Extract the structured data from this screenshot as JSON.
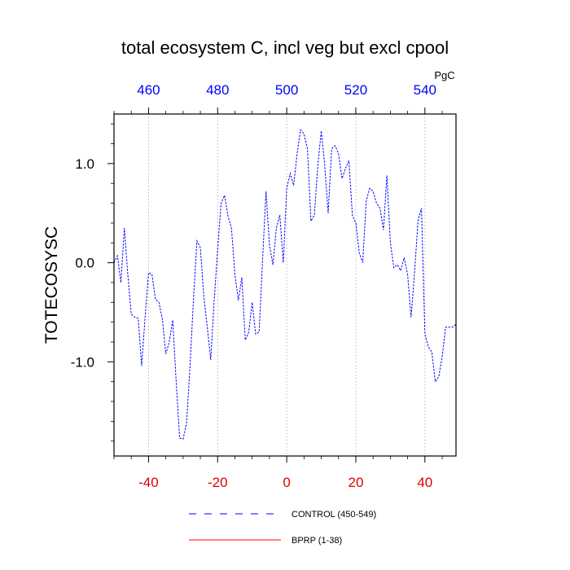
{
  "chart_data": {
    "type": "line",
    "title": "total ecosystem C, incl veg but excl cpool",
    "ylabel": "TOTECOSYSC",
    "xlabel": "",
    "units_label": "PgC",
    "xlim": [
      -50,
      49
    ],
    "ylim": [
      -1.95,
      1.5
    ],
    "bottom_axis": {
      "ticks": [
        -40,
        -20,
        0,
        20,
        40
      ],
      "labels": [
        "-40",
        "-20",
        "0",
        "20",
        "40"
      ],
      "color": "#e00000"
    },
    "top_axis": {
      "ticks": [
        -40,
        -20,
        0,
        20,
        40
      ],
      "labels": [
        "460",
        "480",
        "500",
        "520",
        "540"
      ],
      "color": "#0000ff"
    },
    "left_axis": {
      "ticks": [
        1.0,
        0.0,
        -1.0
      ],
      "labels": [
        "1.0",
        "0.0",
        "-1.0"
      ]
    },
    "grid": "vertical dotted at major x ticks",
    "series": [
      {
        "name": "CONTROL (450-549)",
        "color": "#0000ff",
        "style": "dashed",
        "x": [
          -50,
          -49,
          -48,
          -47,
          -46,
          -45,
          -44,
          -43,
          -42,
          -41,
          -40,
          -39,
          -38,
          -37,
          -36,
          -35,
          -34,
          -33,
          -32,
          -31,
          -30,
          -29,
          -28,
          -27,
          -26,
          -25,
          -24,
          -23,
          -22,
          -21,
          -20,
          -19,
          -18,
          -17,
          -16,
          -15,
          -14,
          -13,
          -12,
          -11,
          -10,
          -9,
          -8,
          -7,
          -6,
          -5,
          -4,
          -3,
          -2,
          -1,
          0,
          1,
          2,
          3,
          4,
          5,
          6,
          7,
          8,
          9,
          10,
          11,
          12,
          13,
          14,
          15,
          16,
          17,
          18,
          19,
          20,
          21,
          22,
          23,
          24,
          25,
          26,
          27,
          28,
          29,
          30,
          31,
          32,
          33,
          34,
          35,
          36,
          37,
          38,
          39,
          40,
          41,
          42,
          43,
          44,
          45,
          46,
          47,
          48,
          49
        ],
        "values": [
          0.0,
          0.07,
          -0.2,
          0.35,
          -0.12,
          -0.52,
          -0.55,
          -0.56,
          -1.04,
          -0.55,
          -0.1,
          -0.12,
          -0.37,
          -0.4,
          -0.57,
          -0.92,
          -0.8,
          -0.58,
          -1.2,
          -1.77,
          -1.78,
          -1.62,
          -1.05,
          -0.37,
          0.22,
          0.15,
          -0.34,
          -0.65,
          -0.98,
          -0.38,
          0.13,
          0.6,
          0.68,
          0.47,
          0.35,
          -0.12,
          -0.38,
          -0.15,
          -0.78,
          -0.7,
          -0.4,
          -0.72,
          -0.7,
          0.02,
          0.72,
          0.18,
          -0.02,
          0.35,
          0.48,
          0.0,
          0.75,
          0.9,
          0.78,
          1.1,
          1.34,
          1.3,
          1.15,
          0.42,
          0.48,
          0.98,
          1.33,
          0.98,
          0.5,
          1.15,
          1.18,
          1.1,
          0.85,
          0.95,
          1.03,
          0.48,
          0.4,
          0.1,
          0.0,
          0.62,
          0.75,
          0.72,
          0.6,
          0.55,
          0.33,
          0.88,
          0.2,
          -0.05,
          -0.02,
          -0.08,
          0.05,
          -0.12,
          -0.55,
          -0.1,
          0.42,
          0.55,
          -0.72,
          -0.85,
          -0.9,
          -1.2,
          -1.15,
          -0.95,
          -0.65,
          -0.65,
          -0.65,
          -0.62
        ]
      },
      {
        "name": "BPRP (1-38)",
        "color": "#ff0000",
        "style": "solid",
        "x": [],
        "values": []
      }
    ],
    "legend": {
      "placement": "bottom-center",
      "entries": [
        "CONTROL (450-549)",
        "BPRP (1-38)"
      ]
    }
  }
}
